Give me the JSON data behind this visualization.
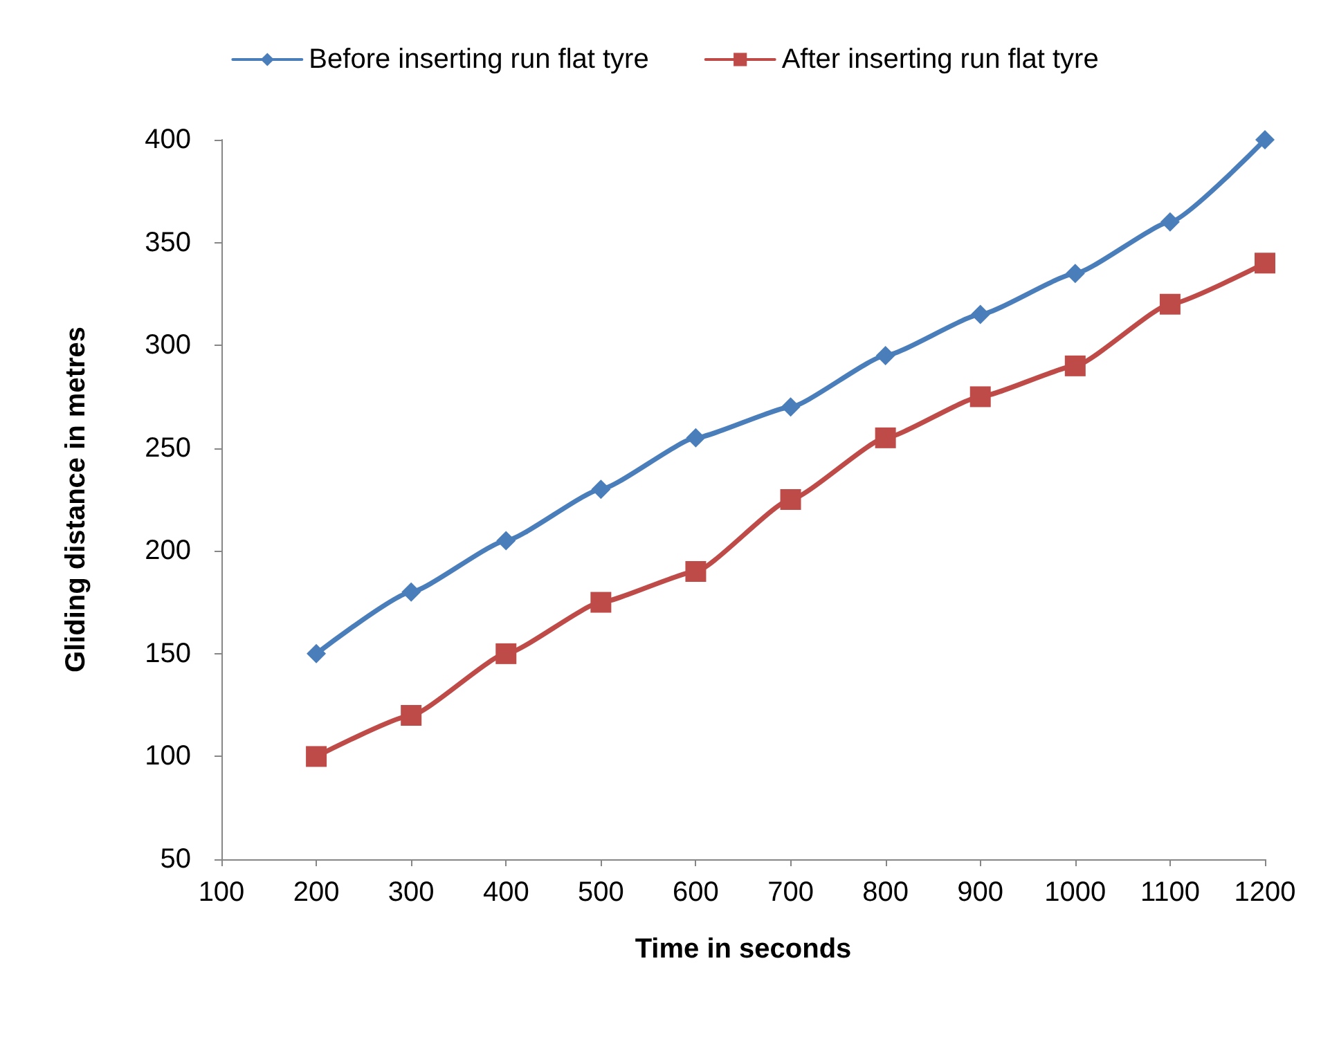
{
  "chart_data": {
    "type": "line",
    "xlabel": "Time in seconds",
    "ylabel": "Gliding distance in metres",
    "x": [
      200,
      300,
      400,
      500,
      600,
      700,
      800,
      900,
      1000,
      1100,
      1200
    ],
    "series": [
      {
        "name": "Before inserting run flat tyre",
        "color": "#4a7ebb",
        "marker": "diamond",
        "values": [
          150,
          180,
          205,
          230,
          255,
          270,
          295,
          315,
          335,
          360,
          400
        ]
      },
      {
        "name": "After inserting run flat tyre",
        "color": "#be4b48",
        "marker": "square",
        "values": [
          100,
          120,
          150,
          175,
          190,
          225,
          255,
          275,
          290,
          320,
          340
        ]
      }
    ],
    "xlim": [
      100,
      1200
    ],
    "xticks": [
      100,
      200,
      300,
      400,
      500,
      600,
      700,
      800,
      900,
      1000,
      1100,
      1200
    ],
    "ylim": [
      50,
      400
    ],
    "yticks": [
      50,
      100,
      150,
      200,
      250,
      300,
      350,
      400
    ],
    "grid": false,
    "legend": "top",
    "line_style": "solid"
  }
}
